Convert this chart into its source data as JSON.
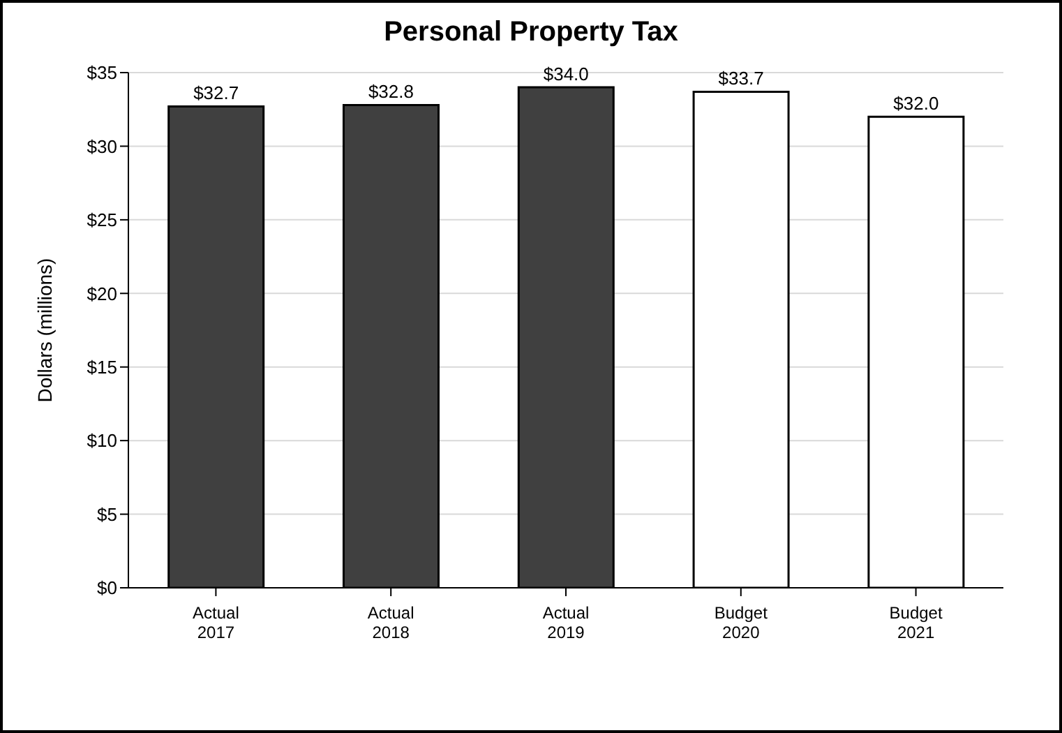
{
  "chart_data": {
    "type": "bar",
    "title": "Personal Property Tax",
    "ylabel": "Dollars (millions)",
    "categories": [
      "Actual 2017",
      "Actual 2018",
      "Actual 2019",
      "Budget 2020",
      "Budget 2021"
    ],
    "values": [
      32.7,
      32.8,
      34.0,
      33.7,
      32.0
    ],
    "colors": [
      "#404040",
      "#404040",
      "#404040",
      "#ffffff",
      "#ffffff"
    ],
    "value_labels": [
      "$32.7",
      "$32.8",
      "$34.0",
      "$33.7",
      "$32.0"
    ],
    "ylim": [
      0,
      35
    ],
    "yticks": [
      {
        "value": 0,
        "label": "$0"
      },
      {
        "value": 5,
        "label": "$5"
      },
      {
        "value": 10,
        "label": "$10"
      },
      {
        "value": 15,
        "label": "$15"
      },
      {
        "value": 20,
        "label": "$20"
      },
      {
        "value": 25,
        "label": "$25"
      },
      {
        "value": 30,
        "label": "$30"
      },
      {
        "value": 35,
        "label": "$35"
      }
    ],
    "grid": "y",
    "legend": false
  }
}
